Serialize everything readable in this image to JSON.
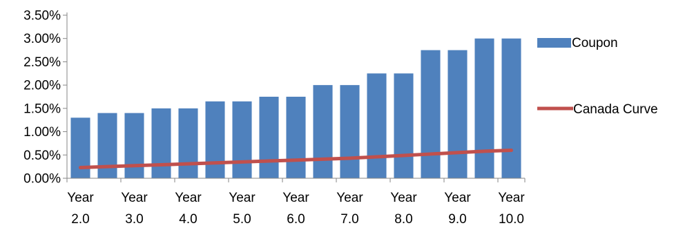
{
  "chart_data": {
    "type": "bar",
    "x_labels": [
      [
        "Year",
        "2.0"
      ],
      [
        "Year",
        "3.0"
      ],
      [
        "Year",
        "4.0"
      ],
      [
        "Year",
        "5.0"
      ],
      [
        "Year",
        "6.0"
      ],
      [
        "Year",
        "7.0"
      ],
      [
        "Year",
        "8.0"
      ],
      [
        "Year",
        "9.0"
      ],
      [
        "Year",
        "10.0"
      ]
    ],
    "x": [
      2.0,
      2.5,
      3.0,
      3.5,
      4.0,
      4.5,
      5.0,
      5.5,
      6.0,
      6.5,
      7.0,
      7.5,
      8.0,
      8.5,
      9.0,
      9.5,
      10.0
    ],
    "series": [
      {
        "name": "Coupon",
        "type": "bar",
        "color": "#4f81bd",
        "values": [
          1.3,
          1.4,
          1.4,
          1.5,
          1.5,
          1.65,
          1.65,
          1.75,
          1.75,
          2.0,
          2.0,
          2.25,
          2.25,
          2.75,
          2.75,
          3.0,
          3.0
        ]
      },
      {
        "name": "Canada Curve",
        "type": "line",
        "color": "#c0504d",
        "values": [
          0.23,
          0.25,
          0.27,
          0.29,
          0.31,
          0.33,
          0.35,
          0.37,
          0.39,
          0.41,
          0.43,
          0.46,
          0.49,
          0.52,
          0.55,
          0.58,
          0.6
        ]
      }
    ],
    "y_ticks": [
      "0.00%",
      "0.50%",
      "1.00%",
      "1.50%",
      "2.00%",
      "2.50%",
      "3.00%",
      "3.50%"
    ],
    "ylim": [
      0,
      3.5
    ],
    "legend_position": "right",
    "grid": false
  }
}
